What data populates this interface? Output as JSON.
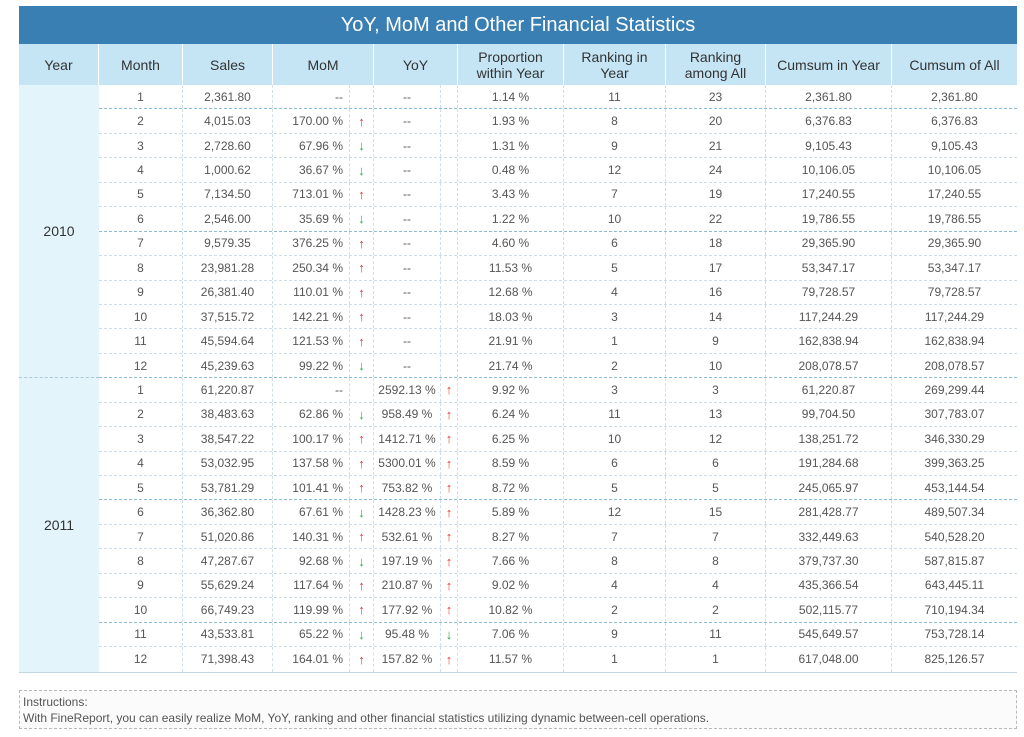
{
  "title": "YoY, MoM and Other Financial Statistics",
  "headers": {
    "year": "Year",
    "month": "Month",
    "sales": "Sales",
    "mom": "MoM",
    "yoy": "YoY",
    "proportion_line1": "Proportion",
    "proportion_line2": "within Year",
    "rank_year_line1": "Ranking in",
    "rank_year_line2": "Year",
    "rank_all_line1": "Ranking",
    "rank_all_line2": "among All",
    "cumsum_year": "Cumsum in Year",
    "cumsum_all": "Cumsum of All"
  },
  "up_arrow": "↑",
  "down_arrow": "↓",
  "years": [
    {
      "year": "2010",
      "rows": [
        {
          "month": "1",
          "sales": "2,361.80",
          "mom": "--",
          "mom_dir": "",
          "yoy": "--",
          "yoy_dir": "",
          "prop": "1.14 %",
          "rank_year": "11",
          "rank_all": "23",
          "cum_year": "2,361.80",
          "cum_all": "2,361.80"
        },
        {
          "month": "2",
          "sales": "4,015.03",
          "mom": "170.00 %",
          "mom_dir": "up",
          "yoy": "--",
          "yoy_dir": "",
          "prop": "1.93 %",
          "rank_year": "8",
          "rank_all": "20",
          "cum_year": "6,376.83",
          "cum_all": "6,376.83"
        },
        {
          "month": "3",
          "sales": "2,728.60",
          "mom": "67.96 %",
          "mom_dir": "down",
          "yoy": "--",
          "yoy_dir": "",
          "prop": "1.31 %",
          "rank_year": "9",
          "rank_all": "21",
          "cum_year": "9,105.43",
          "cum_all": "9,105.43"
        },
        {
          "month": "4",
          "sales": "1,000.62",
          "mom": "36.67 %",
          "mom_dir": "down",
          "yoy": "--",
          "yoy_dir": "",
          "prop": "0.48 %",
          "rank_year": "12",
          "rank_all": "24",
          "cum_year": "10,106.05",
          "cum_all": "10,106.05"
        },
        {
          "month": "5",
          "sales": "7,134.50",
          "mom": "713.01 %",
          "mom_dir": "up",
          "yoy": "--",
          "yoy_dir": "",
          "prop": "3.43 %",
          "rank_year": "7",
          "rank_all": "19",
          "cum_year": "17,240.55",
          "cum_all": "17,240.55"
        },
        {
          "month": "6",
          "sales": "2,546.00",
          "mom": "35.69 %",
          "mom_dir": "down",
          "yoy": "--",
          "yoy_dir": "",
          "prop": "1.22 %",
          "rank_year": "10",
          "rank_all": "22",
          "cum_year": "19,786.55",
          "cum_all": "19,786.55"
        },
        {
          "month": "7",
          "sales": "9,579.35",
          "mom": "376.25 %",
          "mom_dir": "up",
          "yoy": "--",
          "yoy_dir": "",
          "prop": "4.60 %",
          "rank_year": "6",
          "rank_all": "18",
          "cum_year": "29,365.90",
          "cum_all": "29,365.90"
        },
        {
          "month": "8",
          "sales": "23,981.28",
          "mom": "250.34 %",
          "mom_dir": "up",
          "yoy": "--",
          "yoy_dir": "",
          "prop": "11.53 %",
          "rank_year": "5",
          "rank_all": "17",
          "cum_year": "53,347.17",
          "cum_all": "53,347.17"
        },
        {
          "month": "9",
          "sales": "26,381.40",
          "mom": "110.01 %",
          "mom_dir": "up",
          "yoy": "--",
          "yoy_dir": "",
          "prop": "12.68 %",
          "rank_year": "4",
          "rank_all": "16",
          "cum_year": "79,728.57",
          "cum_all": "79,728.57"
        },
        {
          "month": "10",
          "sales": "37,515.72",
          "mom": "142.21 %",
          "mom_dir": "up",
          "yoy": "--",
          "yoy_dir": "",
          "prop": "18.03 %",
          "rank_year": "3",
          "rank_all": "14",
          "cum_year": "117,244.29",
          "cum_all": "117,244.29"
        },
        {
          "month": "11",
          "sales": "45,594.64",
          "mom": "121.53 %",
          "mom_dir": "up",
          "yoy": "--",
          "yoy_dir": "",
          "prop": "21.91 %",
          "rank_year": "1",
          "rank_all": "9",
          "cum_year": "162,838.94",
          "cum_all": "162,838.94"
        },
        {
          "month": "12",
          "sales": "45,239.63",
          "mom": "99.22 %",
          "mom_dir": "down",
          "yoy": "--",
          "yoy_dir": "",
          "prop": "21.74 %",
          "rank_year": "2",
          "rank_all": "10",
          "cum_year": "208,078.57",
          "cum_all": "208,078.57"
        }
      ]
    },
    {
      "year": "2011",
      "rows": [
        {
          "month": "1",
          "sales": "61,220.87",
          "mom": "--",
          "mom_dir": "",
          "yoy": "2592.13 %",
          "yoy_dir": "up",
          "prop": "9.92 %",
          "rank_year": "3",
          "rank_all": "3",
          "cum_year": "61,220.87",
          "cum_all": "269,299.44"
        },
        {
          "month": "2",
          "sales": "38,483.63",
          "mom": "62.86 %",
          "mom_dir": "down",
          "yoy": "958.49 %",
          "yoy_dir": "up",
          "prop": "6.24 %",
          "rank_year": "11",
          "rank_all": "13",
          "cum_year": "99,704.50",
          "cum_all": "307,783.07"
        },
        {
          "month": "3",
          "sales": "38,547.22",
          "mom": "100.17 %",
          "mom_dir": "up",
          "yoy": "1412.71 %",
          "yoy_dir": "up",
          "prop": "6.25 %",
          "rank_year": "10",
          "rank_all": "12",
          "cum_year": "138,251.72",
          "cum_all": "346,330.29"
        },
        {
          "month": "4",
          "sales": "53,032.95",
          "mom": "137.58 %",
          "mom_dir": "up",
          "yoy": "5300.01 %",
          "yoy_dir": "up",
          "prop": "8.59 %",
          "rank_year": "6",
          "rank_all": "6",
          "cum_year": "191,284.68",
          "cum_all": "399,363.25"
        },
        {
          "month": "5",
          "sales": "53,781.29",
          "mom": "101.41 %",
          "mom_dir": "up",
          "yoy": "753.82 %",
          "yoy_dir": "up",
          "prop": "8.72 %",
          "rank_year": "5",
          "rank_all": "5",
          "cum_year": "245,065.97",
          "cum_all": "453,144.54"
        },
        {
          "month": "6",
          "sales": "36,362.80",
          "mom": "67.61 %",
          "mom_dir": "down",
          "yoy": "1428.23 %",
          "yoy_dir": "up",
          "prop": "5.89 %",
          "rank_year": "12",
          "rank_all": "15",
          "cum_year": "281,428.77",
          "cum_all": "489,507.34"
        },
        {
          "month": "7",
          "sales": "51,020.86",
          "mom": "140.31 %",
          "mom_dir": "up",
          "yoy": "532.61 %",
          "yoy_dir": "up",
          "prop": "8.27 %",
          "rank_year": "7",
          "rank_all": "7",
          "cum_year": "332,449.63",
          "cum_all": "540,528.20"
        },
        {
          "month": "8",
          "sales": "47,287.67",
          "mom": "92.68 %",
          "mom_dir": "down",
          "yoy": "197.19 %",
          "yoy_dir": "up",
          "prop": "7.66 %",
          "rank_year": "8",
          "rank_all": "8",
          "cum_year": "379,737.30",
          "cum_all": "587,815.87"
        },
        {
          "month": "9",
          "sales": "55,629.24",
          "mom": "117.64 %",
          "mom_dir": "up",
          "yoy": "210.87 %",
          "yoy_dir": "up",
          "prop": "9.02 %",
          "rank_year": "4",
          "rank_all": "4",
          "cum_year": "435,366.54",
          "cum_all": "643,445.11"
        },
        {
          "month": "10",
          "sales": "66,749.23",
          "mom": "119.99 %",
          "mom_dir": "up",
          "yoy": "177.92 %",
          "yoy_dir": "up",
          "prop": "10.82 %",
          "rank_year": "2",
          "rank_all": "2",
          "cum_year": "502,115.77",
          "cum_all": "710,194.34"
        },
        {
          "month": "11",
          "sales": "43,533.81",
          "mom": "65.22 %",
          "mom_dir": "down",
          "yoy": "95.48 %",
          "yoy_dir": "down",
          "prop": "7.06 %",
          "rank_year": "9",
          "rank_all": "11",
          "cum_year": "545,649.57",
          "cum_all": "753,728.14"
        },
        {
          "month": "12",
          "sales": "71,398.43",
          "mom": "164.01 %",
          "mom_dir": "up",
          "yoy": "157.82 %",
          "yoy_dir": "up",
          "prop": "11.57 %",
          "rank_year": "1",
          "rank_all": "1",
          "cum_year": "617,048.00",
          "cum_all": "825,126.57"
        }
      ]
    }
  ],
  "instructions": {
    "label": "Instructions:",
    "text": "With FineReport, you can easily realize MoM, YoY, ranking and other financial statistics utilizing dynamic between-cell operations."
  },
  "colors": {
    "title_bg": "#3a7fb4",
    "header_bg": "#c5e5f5",
    "year_bg": "#e3f4fb",
    "up": "#e23a3a",
    "down": "#2ea84a"
  }
}
